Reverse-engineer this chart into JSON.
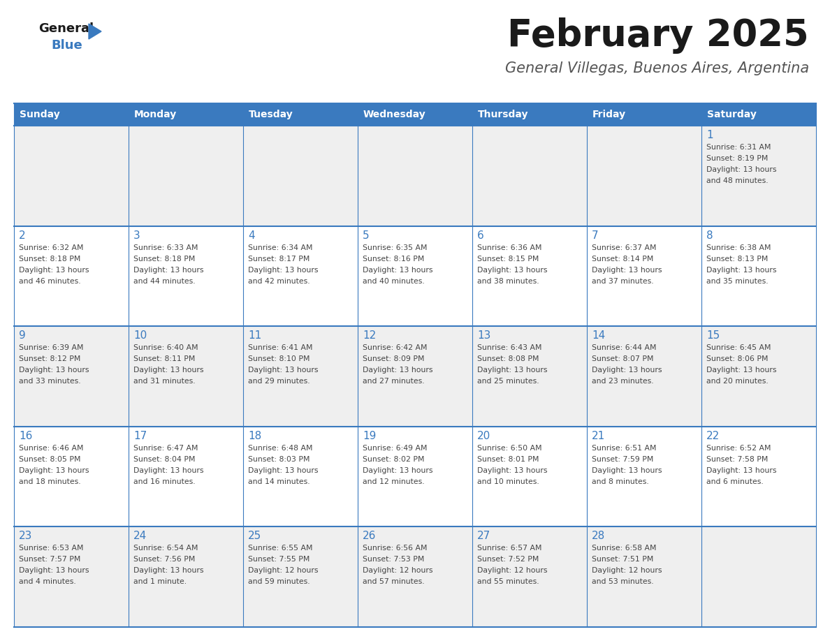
{
  "title": "February 2025",
  "subtitle": "General Villegas, Buenos Aires, Argentina",
  "days_of_week": [
    "Sunday",
    "Monday",
    "Tuesday",
    "Wednesday",
    "Thursday",
    "Friday",
    "Saturday"
  ],
  "header_bg_color": "#3a7abf",
  "header_text_color": "#ffffff",
  "row_colors": [
    "#efefef",
    "#ffffff",
    "#efefef",
    "#ffffff",
    "#efefef"
  ],
  "day_num_color": "#3a7abf",
  "info_text_color": "#444444",
  "title_color": "#1a1a1a",
  "subtitle_color": "#555555",
  "logo_general_color": "#1a1a1a",
  "logo_blue_color": "#3a7abf",
  "grid_line_color": "#3a7abf",
  "weeks": [
    [
      {
        "day": null,
        "sunrise": null,
        "sunset": null,
        "daylight_line1": null,
        "daylight_line2": null
      },
      {
        "day": null,
        "sunrise": null,
        "sunset": null,
        "daylight_line1": null,
        "daylight_line2": null
      },
      {
        "day": null,
        "sunrise": null,
        "sunset": null,
        "daylight_line1": null,
        "daylight_line2": null
      },
      {
        "day": null,
        "sunrise": null,
        "sunset": null,
        "daylight_line1": null,
        "daylight_line2": null
      },
      {
        "day": null,
        "sunrise": null,
        "sunset": null,
        "daylight_line1": null,
        "daylight_line2": null
      },
      {
        "day": null,
        "sunrise": null,
        "sunset": null,
        "daylight_line1": null,
        "daylight_line2": null
      },
      {
        "day": "1",
        "sunrise": "Sunrise: 6:31 AM",
        "sunset": "Sunset: 8:19 PM",
        "daylight_line1": "Daylight: 13 hours",
        "daylight_line2": "and 48 minutes."
      }
    ],
    [
      {
        "day": "2",
        "sunrise": "Sunrise: 6:32 AM",
        "sunset": "Sunset: 8:18 PM",
        "daylight_line1": "Daylight: 13 hours",
        "daylight_line2": "and 46 minutes."
      },
      {
        "day": "3",
        "sunrise": "Sunrise: 6:33 AM",
        "sunset": "Sunset: 8:18 PM",
        "daylight_line1": "Daylight: 13 hours",
        "daylight_line2": "and 44 minutes."
      },
      {
        "day": "4",
        "sunrise": "Sunrise: 6:34 AM",
        "sunset": "Sunset: 8:17 PM",
        "daylight_line1": "Daylight: 13 hours",
        "daylight_line2": "and 42 minutes."
      },
      {
        "day": "5",
        "sunrise": "Sunrise: 6:35 AM",
        "sunset": "Sunset: 8:16 PM",
        "daylight_line1": "Daylight: 13 hours",
        "daylight_line2": "and 40 minutes."
      },
      {
        "day": "6",
        "sunrise": "Sunrise: 6:36 AM",
        "sunset": "Sunset: 8:15 PM",
        "daylight_line1": "Daylight: 13 hours",
        "daylight_line2": "and 38 minutes."
      },
      {
        "day": "7",
        "sunrise": "Sunrise: 6:37 AM",
        "sunset": "Sunset: 8:14 PM",
        "daylight_line1": "Daylight: 13 hours",
        "daylight_line2": "and 37 minutes."
      },
      {
        "day": "8",
        "sunrise": "Sunrise: 6:38 AM",
        "sunset": "Sunset: 8:13 PM",
        "daylight_line1": "Daylight: 13 hours",
        "daylight_line2": "and 35 minutes."
      }
    ],
    [
      {
        "day": "9",
        "sunrise": "Sunrise: 6:39 AM",
        "sunset": "Sunset: 8:12 PM",
        "daylight_line1": "Daylight: 13 hours",
        "daylight_line2": "and 33 minutes."
      },
      {
        "day": "10",
        "sunrise": "Sunrise: 6:40 AM",
        "sunset": "Sunset: 8:11 PM",
        "daylight_line1": "Daylight: 13 hours",
        "daylight_line2": "and 31 minutes."
      },
      {
        "day": "11",
        "sunrise": "Sunrise: 6:41 AM",
        "sunset": "Sunset: 8:10 PM",
        "daylight_line1": "Daylight: 13 hours",
        "daylight_line2": "and 29 minutes."
      },
      {
        "day": "12",
        "sunrise": "Sunrise: 6:42 AM",
        "sunset": "Sunset: 8:09 PM",
        "daylight_line1": "Daylight: 13 hours",
        "daylight_line2": "and 27 minutes."
      },
      {
        "day": "13",
        "sunrise": "Sunrise: 6:43 AM",
        "sunset": "Sunset: 8:08 PM",
        "daylight_line1": "Daylight: 13 hours",
        "daylight_line2": "and 25 minutes."
      },
      {
        "day": "14",
        "sunrise": "Sunrise: 6:44 AM",
        "sunset": "Sunset: 8:07 PM",
        "daylight_line1": "Daylight: 13 hours",
        "daylight_line2": "and 23 minutes."
      },
      {
        "day": "15",
        "sunrise": "Sunrise: 6:45 AM",
        "sunset": "Sunset: 8:06 PM",
        "daylight_line1": "Daylight: 13 hours",
        "daylight_line2": "and 20 minutes."
      }
    ],
    [
      {
        "day": "16",
        "sunrise": "Sunrise: 6:46 AM",
        "sunset": "Sunset: 8:05 PM",
        "daylight_line1": "Daylight: 13 hours",
        "daylight_line2": "and 18 minutes."
      },
      {
        "day": "17",
        "sunrise": "Sunrise: 6:47 AM",
        "sunset": "Sunset: 8:04 PM",
        "daylight_line1": "Daylight: 13 hours",
        "daylight_line2": "and 16 minutes."
      },
      {
        "day": "18",
        "sunrise": "Sunrise: 6:48 AM",
        "sunset": "Sunset: 8:03 PM",
        "daylight_line1": "Daylight: 13 hours",
        "daylight_line2": "and 14 minutes."
      },
      {
        "day": "19",
        "sunrise": "Sunrise: 6:49 AM",
        "sunset": "Sunset: 8:02 PM",
        "daylight_line1": "Daylight: 13 hours",
        "daylight_line2": "and 12 minutes."
      },
      {
        "day": "20",
        "sunrise": "Sunrise: 6:50 AM",
        "sunset": "Sunset: 8:01 PM",
        "daylight_line1": "Daylight: 13 hours",
        "daylight_line2": "and 10 minutes."
      },
      {
        "day": "21",
        "sunrise": "Sunrise: 6:51 AM",
        "sunset": "Sunset: 7:59 PM",
        "daylight_line1": "Daylight: 13 hours",
        "daylight_line2": "and 8 minutes."
      },
      {
        "day": "22",
        "sunrise": "Sunrise: 6:52 AM",
        "sunset": "Sunset: 7:58 PM",
        "daylight_line1": "Daylight: 13 hours",
        "daylight_line2": "and 6 minutes."
      }
    ],
    [
      {
        "day": "23",
        "sunrise": "Sunrise: 6:53 AM",
        "sunset": "Sunset: 7:57 PM",
        "daylight_line1": "Daylight: 13 hours",
        "daylight_line2": "and 4 minutes."
      },
      {
        "day": "24",
        "sunrise": "Sunrise: 6:54 AM",
        "sunset": "Sunset: 7:56 PM",
        "daylight_line1": "Daylight: 13 hours",
        "daylight_line2": "and 1 minute."
      },
      {
        "day": "25",
        "sunrise": "Sunrise: 6:55 AM",
        "sunset": "Sunset: 7:55 PM",
        "daylight_line1": "Daylight: 12 hours",
        "daylight_line2": "and 59 minutes."
      },
      {
        "day": "26",
        "sunrise": "Sunrise: 6:56 AM",
        "sunset": "Sunset: 7:53 PM",
        "daylight_line1": "Daylight: 12 hours",
        "daylight_line2": "and 57 minutes."
      },
      {
        "day": "27",
        "sunrise": "Sunrise: 6:57 AM",
        "sunset": "Sunset: 7:52 PM",
        "daylight_line1": "Daylight: 12 hours",
        "daylight_line2": "and 55 minutes."
      },
      {
        "day": "28",
        "sunrise": "Sunrise: 6:58 AM",
        "sunset": "Sunset: 7:51 PM",
        "daylight_line1": "Daylight: 12 hours",
        "daylight_line2": "and 53 minutes."
      },
      {
        "day": null,
        "sunrise": null,
        "sunset": null,
        "daylight_line1": null,
        "daylight_line2": null
      }
    ]
  ]
}
